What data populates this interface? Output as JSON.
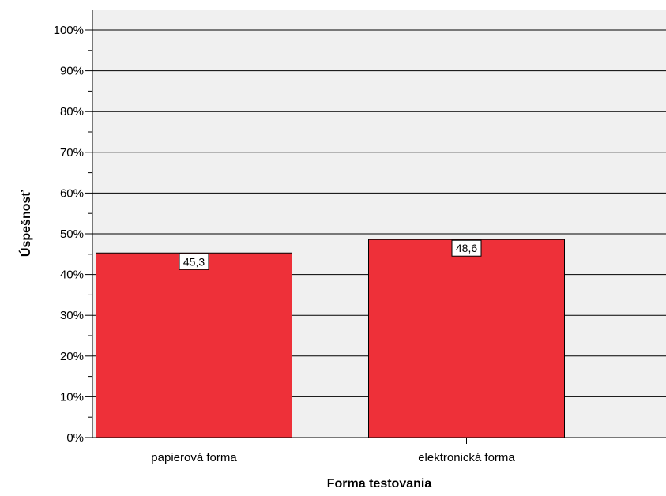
{
  "chart_data": {
    "type": "bar",
    "title": "",
    "xlabel": "Forma testovania",
    "ylabel": "Úspešnosť",
    "categories": [
      "papierová forma",
      "elektronická forma"
    ],
    "values": [
      45.3,
      48.6
    ],
    "data_labels": [
      "45,3",
      "48,6"
    ],
    "ylim": [
      0,
      100
    ],
    "y_ticks": [
      0,
      10,
      20,
      30,
      40,
      50,
      60,
      70,
      80,
      90,
      100
    ],
    "y_tick_labels": [
      "0%",
      "10%",
      "20%",
      "30%",
      "40%",
      "50%",
      "60%",
      "70%",
      "80%",
      "90%",
      "100%"
    ],
    "grid": true,
    "legend": "none",
    "colors": {
      "bar": "#ee3039",
      "bar_stroke": "#000000",
      "plot_background": "#f0f0f0",
      "grid": "#000000"
    }
  }
}
